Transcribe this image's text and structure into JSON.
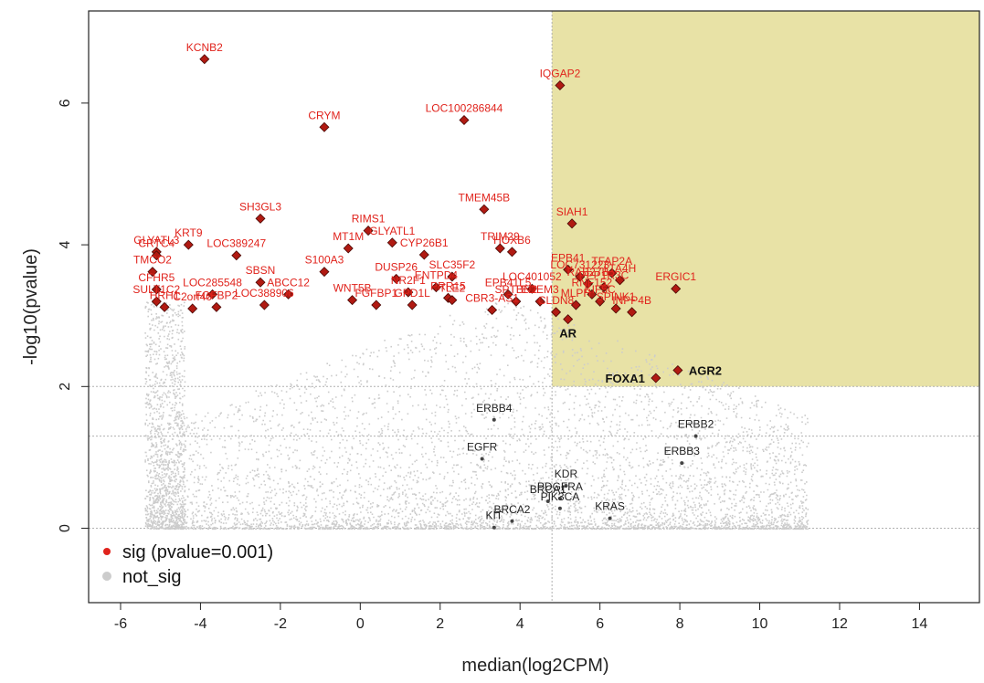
{
  "chart_data": {
    "type": "scatter",
    "title": "",
    "xlabel": "median(log2CPM)",
    "ylabel": "-log10(pvalue)",
    "xlim": [
      -6.8,
      15.5
    ],
    "ylim": [
      -1.05,
      7.3
    ],
    "xticks": [
      -6,
      -4,
      -2,
      0,
      2,
      4,
      6,
      8,
      10,
      12,
      14
    ],
    "yticks": [
      0,
      2,
      4,
      6
    ],
    "xtick_labels": [
      "-6",
      "-4",
      "-2",
      "0",
      "2",
      "4",
      "6",
      "8",
      "10",
      "12",
      "14"
    ],
    "ytick_labels": [
      "0",
      "2",
      "4",
      "6"
    ],
    "highlight_region": {
      "x_min": 4.8,
      "y_min": 2.0,
      "color": "#e8e2a6"
    },
    "reference_lines": {
      "horizontal": [
        0,
        1.3,
        2.0
      ],
      "vertical": [
        4.8
      ]
    },
    "legend": {
      "position": "bottom-left",
      "entries": [
        {
          "label": "sig (pvalue=0.001)",
          "color": "#e0231c"
        },
        {
          "label": "not_sig",
          "color": "#cccccc"
        }
      ]
    },
    "colors": {
      "sig": "#b01a12",
      "sig_label": "#e0231c",
      "not_sig": "#cccccc",
      "gene": "#222222"
    },
    "series": [
      {
        "name": "sig (pvalue=0.001)",
        "points": [
          {
            "x": -3.9,
            "y": 6.62,
            "label": "KCNB2"
          },
          {
            "x": 5.0,
            "y": 6.25,
            "label": "IQGAP2"
          },
          {
            "x": 2.6,
            "y": 5.76,
            "label": "LOC100286844"
          },
          {
            "x": -0.9,
            "y": 5.66,
            "label": "CRYM"
          },
          {
            "x": 3.1,
            "y": 4.5,
            "label": "TMEM45B"
          },
          {
            "x": -2.5,
            "y": 4.37,
            "label": "SH3GL3"
          },
          {
            "x": 5.3,
            "y": 4.3,
            "label": "SIAH1"
          },
          {
            "x": 0.2,
            "y": 4.2,
            "label": "RIMS1"
          },
          {
            "x": 0.8,
            "y": 4.03,
            "label": "GLYATL1"
          },
          {
            "x": 1.6,
            "y": 3.86,
            "label": "CYP26B1"
          },
          {
            "x": -0.3,
            "y": 3.95,
            "label": "MT1M"
          },
          {
            "x": 3.5,
            "y": 3.95,
            "label": "TRIM29"
          },
          {
            "x": 3.8,
            "y": 3.9,
            "label": "HOXB6"
          },
          {
            "x": -5.1,
            "y": 3.9,
            "label": "GLYATL3"
          },
          {
            "x": -5.1,
            "y": 3.85,
            "label": "CRTC4"
          },
          {
            "x": -4.3,
            "y": 4.0,
            "label": "KRT9"
          },
          {
            "x": -3.1,
            "y": 3.85,
            "label": "LOC389247"
          },
          {
            "x": -5.2,
            "y": 3.62,
            "label": "TMCO2"
          },
          {
            "x": -0.9,
            "y": 3.62,
            "label": "S100A3"
          },
          {
            "x": -2.5,
            "y": 3.47,
            "label": "SBSN"
          },
          {
            "x": -5.1,
            "y": 3.37,
            "label": "CFHR5"
          },
          {
            "x": -3.7,
            "y": 3.3,
            "label": "LOC285548"
          },
          {
            "x": -1.8,
            "y": 3.3,
            "label": "ABCC12"
          },
          {
            "x": -5.1,
            "y": 3.2,
            "label": "SULT1C2"
          },
          {
            "x": -4.2,
            "y": 3.1,
            "label": "C2orf40"
          },
          {
            "x": -2.4,
            "y": 3.15,
            "label": "LOC388906"
          },
          {
            "x": -4.9,
            "y": 3.12,
            "label": "HRH1"
          },
          {
            "x": -3.6,
            "y": 3.12,
            "label": "FGFBP2"
          },
          {
            "x": 0.9,
            "y": 3.52,
            "label": "DUSP26"
          },
          {
            "x": 2.3,
            "y": 3.55,
            "label": "SLC35F2"
          },
          {
            "x": -0.2,
            "y": 3.22,
            "label": "WNT5B"
          },
          {
            "x": 0.4,
            "y": 3.15,
            "label": "FGFBP1"
          },
          {
            "x": 1.2,
            "y": 3.33,
            "label": "NR2F1"
          },
          {
            "x": 1.3,
            "y": 3.15,
            "label": "GPD1L"
          },
          {
            "x": 1.9,
            "y": 3.4,
            "label": "ENTPD4"
          },
          {
            "x": 2.2,
            "y": 3.25,
            "label": "PRR15"
          },
          {
            "x": 2.3,
            "y": 3.22,
            "label": "TLE2"
          },
          {
            "x": 3.3,
            "y": 3.08,
            "label": "CBR3-AS1"
          },
          {
            "x": 3.7,
            "y": 3.3,
            "label": "EPB41L5"
          },
          {
            "x": 4.3,
            "y": 3.38,
            "label": "LOC401052"
          },
          {
            "x": 3.9,
            "y": 3.2,
            "label": "SPTBN2"
          },
          {
            "x": 4.5,
            "y": 3.2,
            "label": "EDEM3"
          },
          {
            "x": 5.2,
            "y": 3.65,
            "label": "EPB41"
          },
          {
            "x": 5.5,
            "y": 3.55,
            "label": "LOC731223"
          },
          {
            "x": 6.3,
            "y": 3.6,
            "label": "TFAP2A"
          },
          {
            "x": 6.5,
            "y": 3.5,
            "label": "LTA4H"
          },
          {
            "x": 5.7,
            "y": 3.45,
            "label": "RAB27B"
          },
          {
            "x": 6.1,
            "y": 3.4,
            "label": "PPP1R3C"
          },
          {
            "x": 5.8,
            "y": 3.3,
            "label": "RNF152"
          },
          {
            "x": 6.0,
            "y": 3.2,
            "label": "KIF5C"
          },
          {
            "x": 5.4,
            "y": 3.15,
            "label": "MLPH"
          },
          {
            "x": 6.8,
            "y": 3.05,
            "label": "INPP4B"
          },
          {
            "x": 6.4,
            "y": 3.1,
            "label": "SPINK1"
          },
          {
            "x": 4.9,
            "y": 3.05,
            "label": "CLDN8"
          },
          {
            "x": 7.9,
            "y": 3.38,
            "label": "ERGIC1"
          },
          {
            "x": 5.2,
            "y": 2.95,
            "label": "AR"
          },
          {
            "x": 7.4,
            "y": 2.12,
            "label": "FOXA1"
          },
          {
            "x": 7.95,
            "y": 2.23,
            "label": "AGR2"
          }
        ]
      },
      {
        "name": "not_sig",
        "points": [
          {
            "x": 3.35,
            "y": 1.53,
            "label": "ERBB4"
          },
          {
            "x": 3.05,
            "y": 0.98,
            "label": "EGFR"
          },
          {
            "x": 8.4,
            "y": 1.3,
            "label": "ERBB2"
          },
          {
            "x": 8.05,
            "y": 0.92,
            "label": "ERBB3"
          },
          {
            "x": 5.15,
            "y": 0.6,
            "label": "KDR"
          },
          {
            "x": 5.0,
            "y": 0.42,
            "label": "PDGFRA"
          },
          {
            "x": 4.7,
            "y": 0.38,
            "label": "BRCA1"
          },
          {
            "x": 5.0,
            "y": 0.28,
            "label": "PIK3CA"
          },
          {
            "x": 6.25,
            "y": 0.14,
            "label": "KRAS"
          },
          {
            "x": 3.8,
            "y": 0.1,
            "label": "BRCA2"
          },
          {
            "x": 3.35,
            "y": 0.01,
            "label": "KIT"
          }
        ]
      }
    ]
  }
}
